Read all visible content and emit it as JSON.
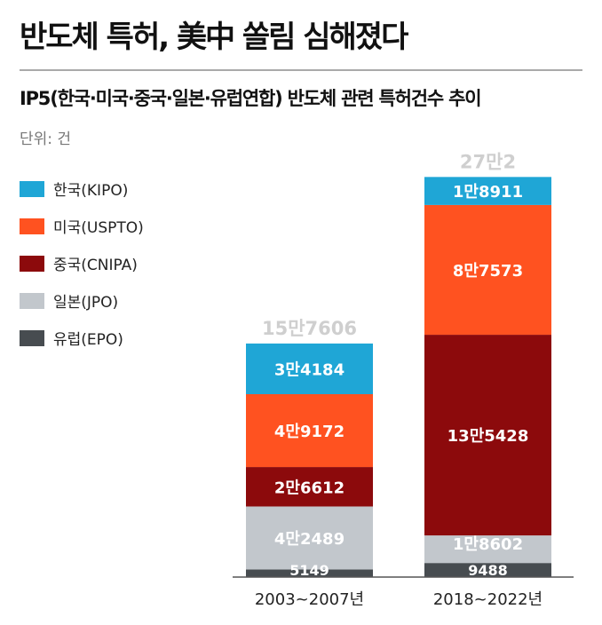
{
  "header": {
    "title": "반도체 특허, 美中 쏠림 심해졌다",
    "subtitle": "IP5(한국·미국·중국·일본·유럽연합) 반도체 관련 특허건수 추이",
    "unit": "단위: 건"
  },
  "chart_data": {
    "type": "bar",
    "stacked": true,
    "title": "IP5(한국·미국·중국·일본·유럽연합) 반도체 관련 특허건수 추이",
    "ylabel": "단위: 건",
    "categories": [
      "2003~2007년",
      "2018~2022년"
    ],
    "totals": [
      157606,
      272002
    ],
    "total_labels": [
      "15만7606",
      "27만2"
    ],
    "legend_position": "top-left",
    "grid": false,
    "series": [
      {
        "name": "한국(KIPO)",
        "color": "#1fa6d6",
        "values": [
          34184,
          18911
        ],
        "labels": [
          "3만4184",
          "1만8911"
        ]
      },
      {
        "name": "미국(USPTO)",
        "color": "#ff5220",
        "values": [
          49172,
          87573
        ],
        "labels": [
          "4만9172",
          "8만7573"
        ]
      },
      {
        "name": "중국(CNIPA)",
        "color": "#8c0a0c",
        "values": [
          26612,
          135428
        ],
        "labels": [
          "2만6612",
          "13만5428"
        ]
      },
      {
        "name": "일본(JPO)",
        "color": "#c2c7cc",
        "values": [
          42489,
          18602
        ],
        "labels": [
          "4만2489",
          "1만8602"
        ]
      },
      {
        "name": "유럽(EPO)",
        "color": "#474c50",
        "values": [
          5149,
          9488
        ],
        "labels": [
          "5149",
          "9488"
        ]
      }
    ]
  }
}
